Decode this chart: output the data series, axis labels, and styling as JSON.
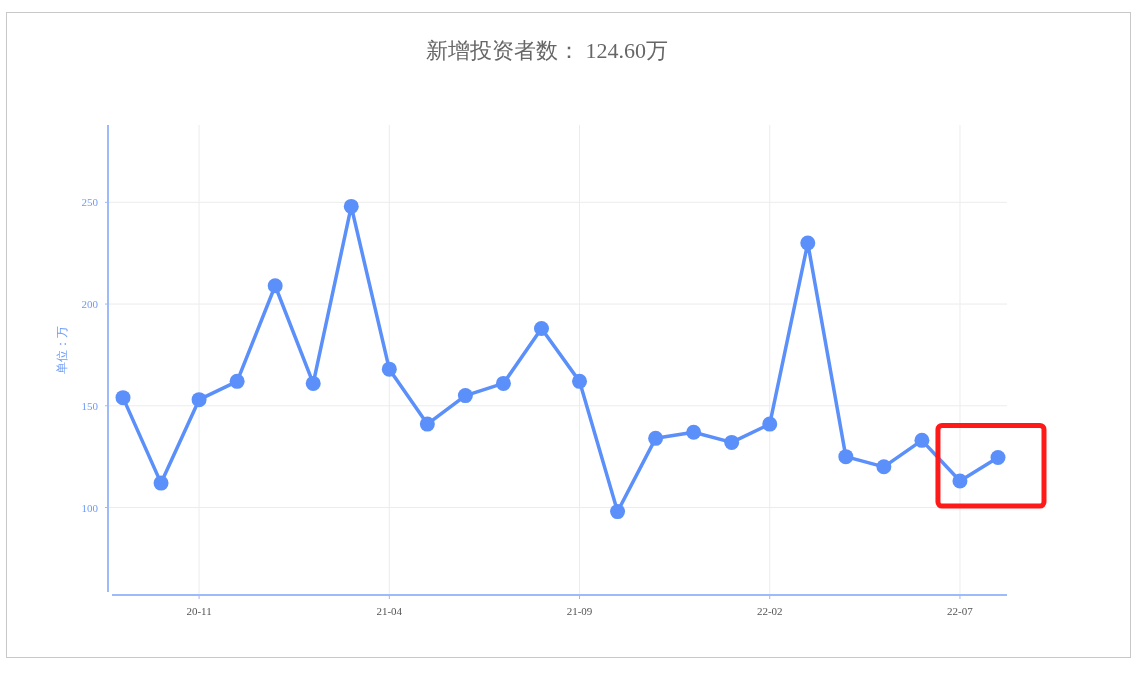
{
  "chart_data": {
    "type": "line",
    "title": "新增投资者数： 124.60万",
    "ylabel": "单位：万",
    "categories": [
      null,
      null,
      "20-11",
      null,
      null,
      null,
      null,
      "21-04",
      null,
      null,
      null,
      null,
      "21-09",
      null,
      null,
      null,
      null,
      "22-02",
      null,
      null,
      null,
      null,
      "22-07",
      null
    ],
    "series": [
      {
        "color": "#5b8ff9",
        "values": [
          154,
          112,
          153,
          162,
          209,
          161,
          248,
          168,
          141,
          155,
          161,
          188,
          162,
          98,
          134,
          137,
          132,
          141,
          230,
          125,
          120,
          133,
          113,
          124.6
        ]
      }
    ],
    "ylim": [
      57,
      288
    ],
    "yticks": [
      100,
      150,
      200,
      250
    ],
    "grid": true,
    "marker": "circle",
    "line_style": "solid"
  }
}
